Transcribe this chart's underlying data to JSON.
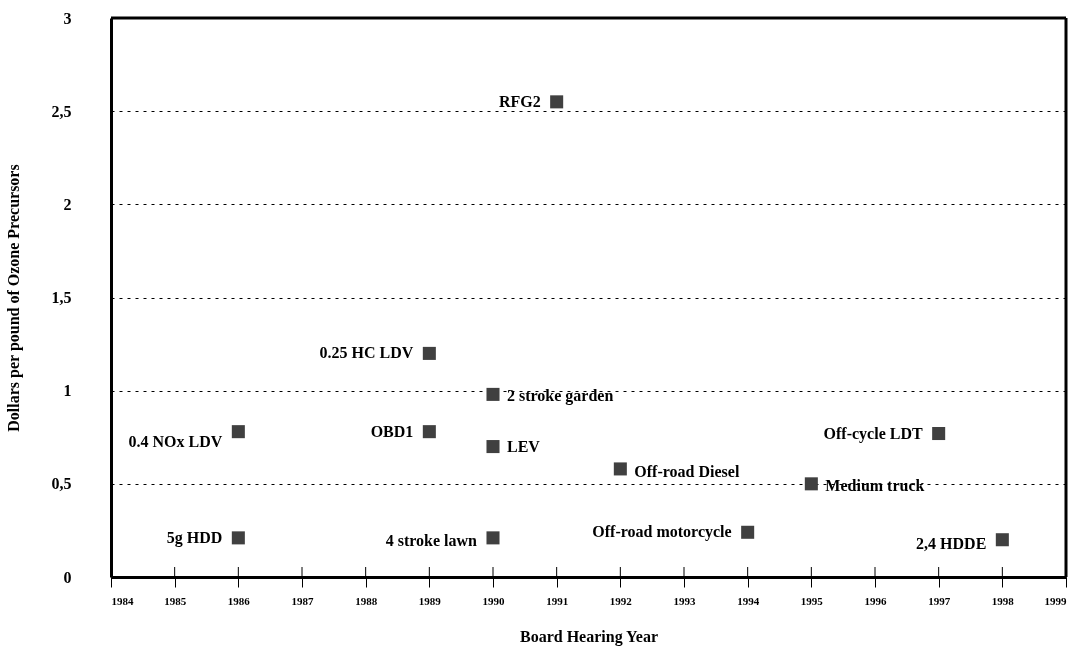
{
  "chart_data": {
    "type": "scatter",
    "xlabel": "Board Hearing Year",
    "ylabel": "Dollars per pound of Ozone Precursors",
    "x": [
      1986,
      1986,
      1989,
      1989,
      1990,
      1990,
      1990,
      1991,
      1992,
      1994,
      1995,
      1997,
      1998
    ],
    "values": [
      0.21,
      0.78,
      1.2,
      0.78,
      0.98,
      0.7,
      0.21,
      2.55,
      0.58,
      0.24,
      0.5,
      0.77,
      0.2
    ],
    "color": "#404040",
    "marker": "square",
    "xlim": [
      1984,
      1999
    ],
    "xticks": [
      1984,
      1985,
      1986,
      1987,
      1988,
      1989,
      1990,
      1991,
      1992,
      1993,
      1994,
      1995,
      1996,
      1997,
      1998,
      1999
    ],
    "ylim": [
      0,
      3
    ],
    "yticks": [
      0,
      {
        "value": 0.5,
        "label": "0,5"
      },
      1,
      {
        "value": 1.5,
        "label": "1,5"
      },
      2,
      {
        "value": 2.5,
        "label": "2,5"
      },
      3
    ],
    "grid": "y",
    "annotations": [
      {
        "text": "5g HDD",
        "x": 1986,
        "y": 0.21
      },
      {
        "text": "0.4 NOx LDV",
        "x": 1986,
        "y": 0.78
      },
      {
        "text": "0.25 HC LDV",
        "x": 1989,
        "y": 1.2
      },
      {
        "text": "OBD1",
        "x": 1989,
        "y": 0.78
      },
      {
        "text": "2 stroke garden",
        "x": 1990,
        "y": 0.98
      },
      {
        "text": "LEV",
        "x": 1990,
        "y": 0.7
      },
      {
        "text": "4 stroke lawn",
        "x": 1990,
        "y": 0.21
      },
      {
        "text": "RFG2",
        "x": 1991,
        "y": 2.55
      },
      {
        "text": "Off-road Diesel",
        "x": 1992,
        "y": 0.58
      },
      {
        "text": "Off-road motorcycle",
        "x": 1994,
        "y": 0.24
      },
      {
        "text": "Medium truck",
        "x": 1995,
        "y": 0.5
      },
      {
        "text": "Off-cycle LDT",
        "x": 1997,
        "y": 0.77
      },
      {
        "text": "2,4 HDDE",
        "x": 1998,
        "y": 0.2
      }
    ]
  }
}
